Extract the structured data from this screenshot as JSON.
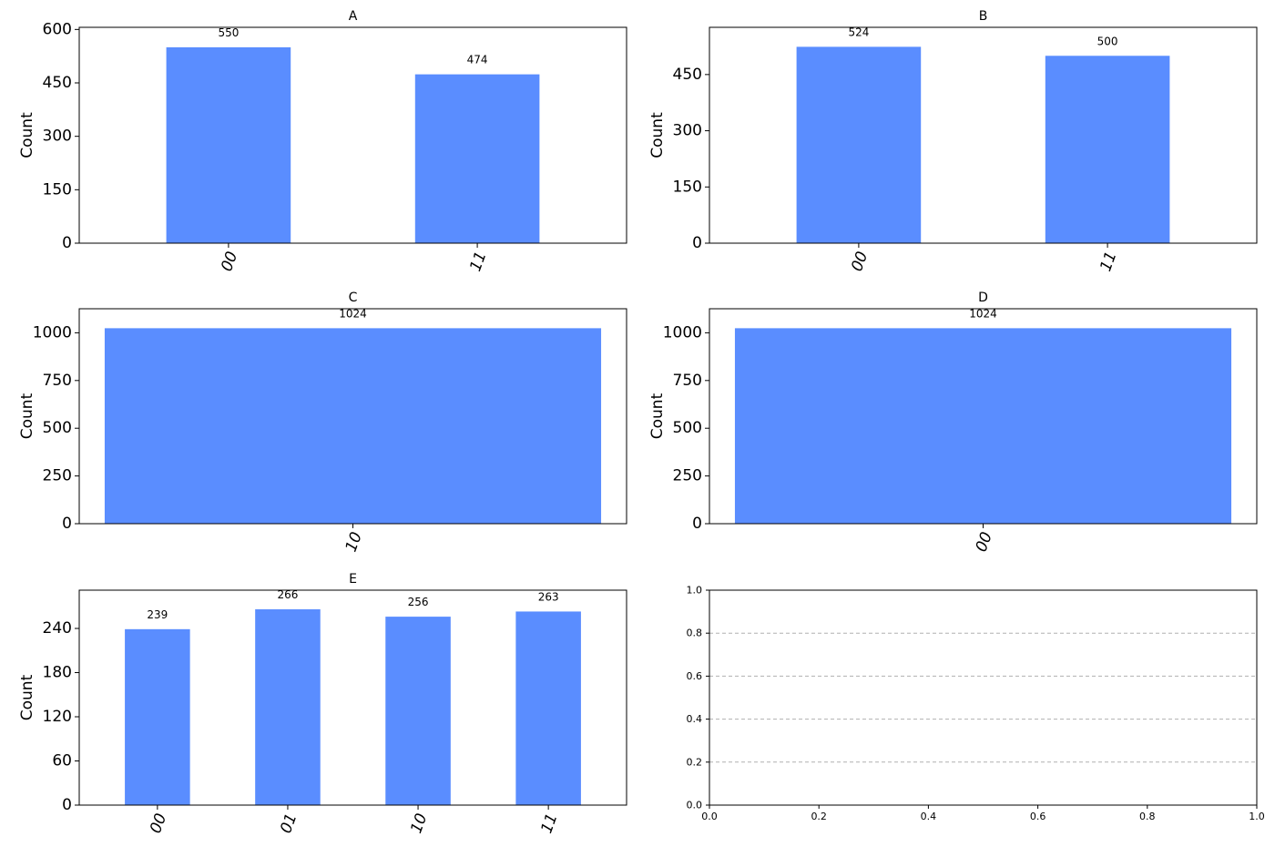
{
  "chart_data": [
    {
      "type": "bar",
      "title": "A",
      "ylabel": "Count",
      "categories": [
        "00",
        "11"
      ],
      "values": [
        550,
        474
      ],
      "ylim": [
        0,
        606
      ],
      "yticks": [
        0,
        150,
        300,
        450,
        600
      ],
      "bar_color": "#5a8dff",
      "data_labels": true
    },
    {
      "type": "bar",
      "title": "B",
      "ylabel": "Count",
      "categories": [
        "00",
        "11"
      ],
      "values": [
        524,
        500
      ],
      "ylim": [
        0,
        576
      ],
      "yticks": [
        0,
        150,
        300,
        450
      ],
      "bar_color": "#5a8dff",
      "data_labels": true
    },
    {
      "type": "bar",
      "title": "C",
      "ylabel": "Count",
      "categories": [
        "10"
      ],
      "values": [
        1024
      ],
      "ylim": [
        0,
        1126
      ],
      "yticks": [
        0,
        250,
        500,
        750,
        1000
      ],
      "bar_color": "#5a8dff",
      "data_labels": true
    },
    {
      "type": "bar",
      "title": "D",
      "ylabel": "Count",
      "categories": [
        "00"
      ],
      "values": [
        1024
      ],
      "ylim": [
        0,
        1126
      ],
      "yticks": [
        0,
        250,
        500,
        750,
        1000
      ],
      "bar_color": "#5a8dff",
      "data_labels": true
    },
    {
      "type": "bar",
      "title": "E",
      "ylabel": "Count",
      "categories": [
        "00",
        "01",
        "10",
        "11"
      ],
      "values": [
        239,
        266,
        256,
        263
      ],
      "ylim": [
        0,
        292
      ],
      "yticks": [
        0,
        60,
        120,
        180,
        240
      ],
      "bar_color": "#5a8dff",
      "data_labels": true
    },
    {
      "type": "line",
      "title": "",
      "series": [],
      "xlim": [
        0,
        1
      ],
      "ylim": [
        0,
        1
      ],
      "xticks": [
        "0.0",
        "0.2",
        "0.4",
        "0.6",
        "0.8",
        "1.0"
      ],
      "yticks": [
        "0.0",
        "0.2",
        "0.4",
        "0.6",
        "0.8",
        "1.0"
      ],
      "grid": "y-dashed"
    }
  ]
}
